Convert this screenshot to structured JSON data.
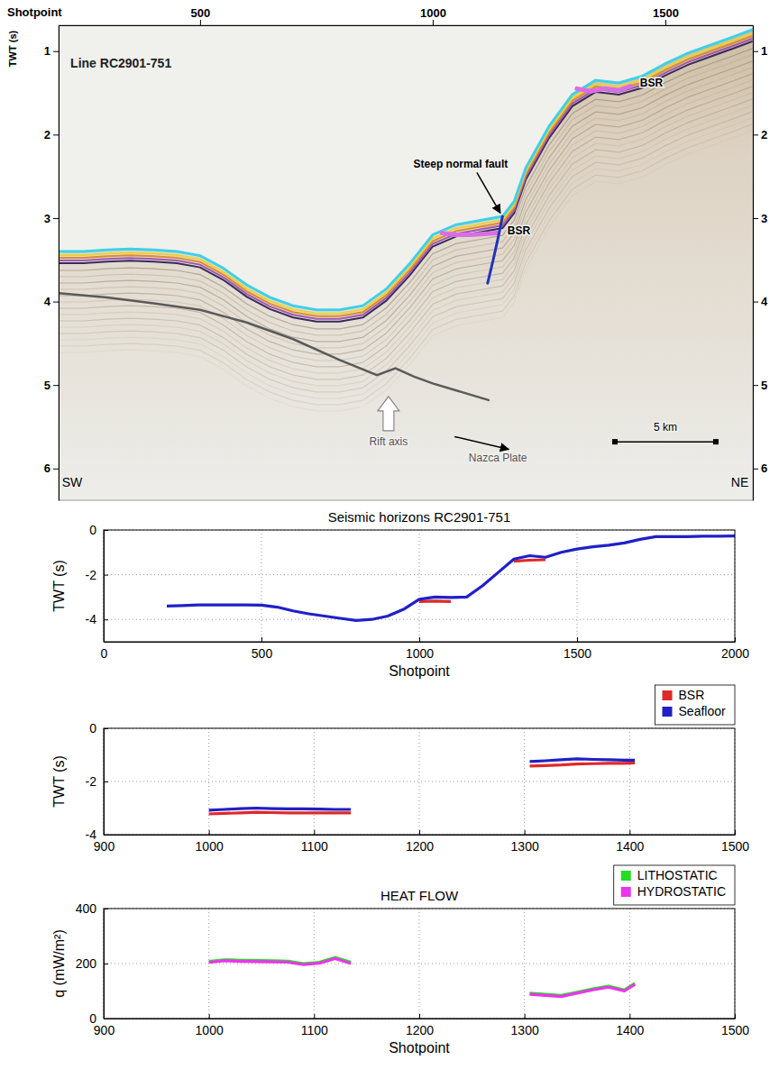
{
  "chart_data": [
    {
      "type": "seismic_section",
      "x_label": "Shotpoint",
      "y_label": "TWT (s)",
      "xlim": [
        196,
        1688
      ],
      "xticks": [
        500,
        1000,
        1500
      ],
      "ylim": [
        6.38,
        0.69
      ],
      "yticks": [
        1,
        2,
        3,
        4,
        5,
        6
      ],
      "y2lim": [
        6.38,
        0.69
      ],
      "y2ticks": [
        1,
        2,
        3,
        4,
        5,
        6
      ],
      "series": [
        {
          "color": "#3fd0e8",
          "x": [
            196,
            250,
            300,
            350,
            400,
            450,
            500,
            550,
            600,
            650,
            700,
            750,
            800,
            850,
            900,
            950,
            1000,
            1050,
            1100,
            1150,
            1175,
            1200,
            1250,
            1300,
            1350,
            1400,
            1450,
            1500,
            1550,
            1600,
            1650,
            1688
          ],
          "values": [
            3.4,
            3.4,
            3.38,
            3.37,
            3.38,
            3.4,
            3.45,
            3.6,
            3.8,
            3.95,
            4.05,
            4.1,
            4.1,
            4.05,
            3.85,
            3.55,
            3.2,
            3.08,
            3.03,
            2.98,
            2.8,
            2.4,
            1.9,
            1.52,
            1.35,
            1.38,
            1.3,
            1.15,
            1.02,
            0.92,
            0.82,
            0.74
          ]
        },
        {
          "color": "#d86ee6",
          "x": [
            1020,
            1050,
            1080,
            1110,
            1140
          ],
          "values": [
            3.18,
            3.2,
            3.2,
            3.19,
            3.18
          ]
        },
        {
          "color": "#d86ee6",
          "x": [
            1310,
            1340,
            1370,
            1400,
            1425
          ],
          "values": [
            1.45,
            1.48,
            1.45,
            1.47,
            1.42
          ]
        },
        {
          "color": "#2233bb",
          "x": [
            1150,
            1140,
            1130,
            1118
          ],
          "values": [
            2.98,
            3.25,
            3.5,
            3.78
          ]
        },
        {
          "color": "#5a5a5a",
          "x": [
            196,
            300,
            400,
            500,
            600,
            700,
            800,
            880,
            920,
            960,
            1000,
            1060,
            1120
          ],
          "values": [
            3.9,
            3.95,
            4.02,
            4.1,
            4.25,
            4.45,
            4.7,
            4.88,
            4.8,
            4.9,
            4.98,
            5.08,
            5.18
          ]
        }
      ],
      "annotations": [
        {
          "text": "Line RC2901-751",
          "x": 330,
          "y": 1.2
        },
        {
          "text": "Steep normal fault",
          "x": 1060,
          "y": 2.4
        },
        {
          "text": "BSR",
          "x": 1185,
          "y": 3.2
        },
        {
          "text": "BSR",
          "x": 1470,
          "y": 1.42
        },
        {
          "text": "Rift axis",
          "x": 905,
          "y": 5.72
        },
        {
          "text": "Nazca Plate",
          "x": 1140,
          "y": 5.92
        },
        {
          "text": "5 km",
          "x": 1500,
          "y": 5.55
        },
        {
          "text": "SW",
          "x": 225,
          "y": 6.22
        },
        {
          "text": "NE",
          "x": 1660,
          "y": 6.22
        }
      ]
    },
    {
      "type": "line",
      "title": "Seismic horizons RC2901-751",
      "x_label": "Shotpoint",
      "y_label": "TWT (s)",
      "xlim": [
        0,
        2000
      ],
      "xticks": [
        0,
        500,
        1000,
        1500,
        2000
      ],
      "ylim": [
        -5,
        0
      ],
      "yticks": [
        -4,
        -2,
        0
      ],
      "grid": true,
      "x": [
        200,
        250,
        300,
        350,
        400,
        450,
        500,
        550,
        600,
        650,
        700,
        750,
        800,
        850,
        900,
        950,
        1000,
        1050,
        1100,
        1150,
        1200,
        1250,
        1300,
        1350,
        1400,
        1450,
        1500,
        1550,
        1600,
        1650,
        1700,
        1750,
        1800,
        1850,
        1900,
        1950,
        2000
      ],
      "series": [
        {
          "color": "#e02828",
          "values": [
            null,
            null,
            null,
            null,
            null,
            null,
            null,
            null,
            null,
            null,
            null,
            null,
            null,
            null,
            null,
            null,
            -3.2,
            -3.18,
            -3.2,
            null,
            null,
            null,
            -1.4,
            -1.35,
            -1.33,
            null,
            null,
            null,
            null,
            null,
            null,
            null,
            null,
            null,
            null,
            null,
            null
          ]
        },
        {
          "color": "#2020c8",
          "values": [
            -3.4,
            -3.38,
            -3.35,
            -3.35,
            -3.35,
            -3.35,
            -3.36,
            -3.45,
            -3.62,
            -3.75,
            -3.85,
            -3.95,
            -4.05,
            -4.0,
            -3.85,
            -3.55,
            -3.1,
            -3.0,
            -3.02,
            -3.0,
            -2.5,
            -1.9,
            -1.3,
            -1.15,
            -1.22,
            -1.0,
            -0.85,
            -0.75,
            -0.68,
            -0.58,
            -0.42,
            -0.3,
            -0.3,
            -0.3,
            -0.28,
            -0.28,
            -0.27
          ]
        }
      ]
    },
    {
      "type": "line",
      "y_label": "TWT (s)",
      "xlim": [
        900,
        1500
      ],
      "xticks": [
        900,
        1000,
        1100,
        1200,
        1300,
        1400,
        1500
      ],
      "ylim": [
        -4,
        0
      ],
      "yticks": [
        -4,
        -2,
        0
      ],
      "grid": true,
      "legend": "northeast",
      "x": [
        1000,
        1015,
        1030,
        1045,
        1060,
        1075,
        1090,
        1105,
        1120,
        1135,
        1200,
        1305,
        1320,
        1335,
        1350,
        1365,
        1380,
        1395,
        1405
      ],
      "series": [
        {
          "name": "BSR",
          "color": "#e02828",
          "values": [
            -3.22,
            -3.2,
            -3.18,
            -3.16,
            -3.17,
            -3.18,
            -3.18,
            -3.18,
            -3.18,
            -3.18,
            null,
            -1.42,
            -1.4,
            -1.38,
            -1.34,
            -1.33,
            -1.32,
            -1.32,
            -1.3
          ]
        },
        {
          "name": "Seafloor",
          "color": "#2020c8",
          "values": [
            -3.08,
            -3.05,
            -3.02,
            -3.0,
            -3.02,
            -3.03,
            -3.03,
            -3.04,
            -3.05,
            -3.05,
            null,
            -1.25,
            -1.22,
            -1.18,
            -1.15,
            -1.17,
            -1.18,
            -1.2,
            -1.2
          ]
        }
      ]
    },
    {
      "type": "line",
      "title": "HEAT FLOW",
      "x_label": "Shotpoint",
      "y_label": "q (mW/m²)",
      "xlim": [
        900,
        1500
      ],
      "xticks": [
        900,
        1000,
        1100,
        1200,
        1300,
        1400,
        1500
      ],
      "ylim": [
        0,
        400
      ],
      "yticks": [
        0,
        200,
        400
      ],
      "grid": true,
      "legend": "northeast",
      "x": [
        1000,
        1015,
        1030,
        1045,
        1060,
        1075,
        1090,
        1105,
        1120,
        1135,
        1200,
        1305,
        1320,
        1335,
        1350,
        1365,
        1380,
        1395,
        1405
      ],
      "series": [
        {
          "name": "LITHOSTATIC",
          "color": "#22dd22",
          "values": [
            208,
            214,
            212,
            211,
            210,
            209,
            200,
            205,
            222,
            205,
            null,
            92,
            88,
            84,
            96,
            108,
            118,
            104,
            128
          ]
        },
        {
          "name": "HYDROSTATIC",
          "color": "#ee33ee",
          "values": [
            204,
            210,
            208,
            207,
            206,
            205,
            196,
            201,
            218,
            200,
            null,
            88,
            84,
            80,
            92,
            104,
            114,
            100,
            124
          ]
        }
      ]
    }
  ]
}
